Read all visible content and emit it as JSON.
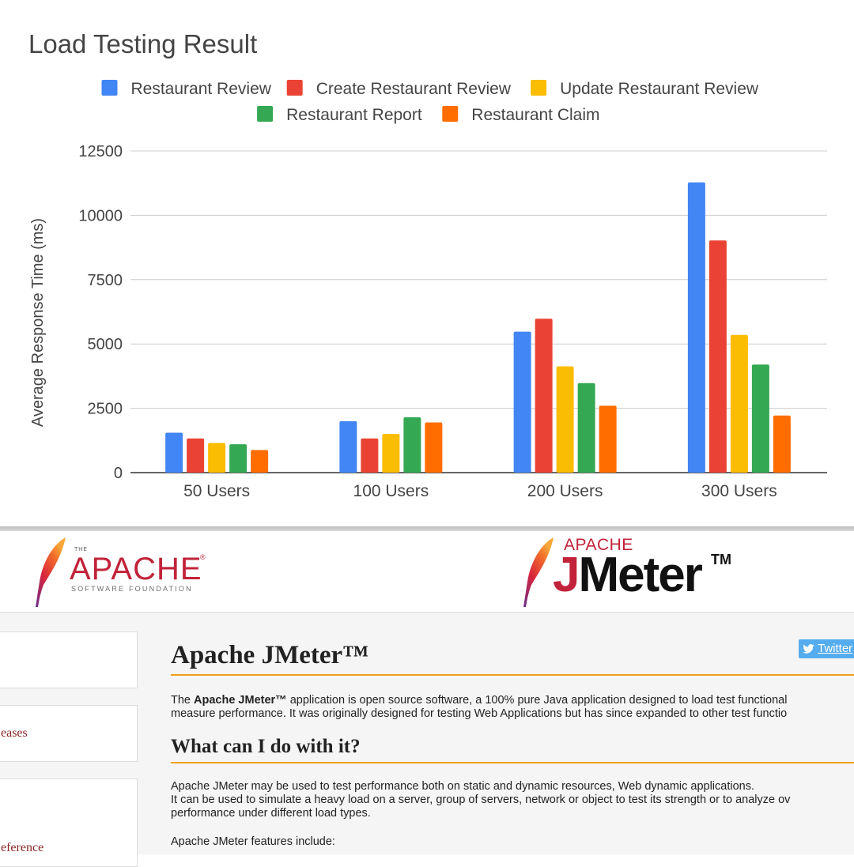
{
  "chart_data": {
    "type": "bar",
    "title": "Load Testing Result",
    "ylabel": "Average Response Time (ms)",
    "xlabel": "",
    "categories": [
      "50 Users",
      "100 Users",
      "200 Users",
      "300 Users"
    ],
    "ylim": [
      0,
      12500
    ],
    "yticks": [
      "0",
      "2500",
      "5000",
      "7500",
      "10000",
      "12500"
    ],
    "grid": true,
    "legend_position": "top",
    "series": [
      {
        "name": "Restaurant Review",
        "color": "#4285f4",
        "values": [
          1550,
          2000,
          5480,
          11280
        ]
      },
      {
        "name": "Create Restaurant Review",
        "color": "#ea4335",
        "values": [
          1330,
          1330,
          5980,
          9020
        ]
      },
      {
        "name": "Update Restaurant Review",
        "color": "#fbbc04",
        "values": [
          1150,
          1500,
          4130,
          5350
        ]
      },
      {
        "name": "Restaurant Report",
        "color": "#34a853",
        "values": [
          1100,
          2150,
          3480,
          4200
        ]
      },
      {
        "name": "Restaurant Claim",
        "color": "#ff6d01",
        "values": [
          880,
          1950,
          2600,
          2220
        ]
      }
    ]
  },
  "banner": {
    "asf": {
      "the": "THE",
      "word": "APACHE",
      "reg": "®",
      "sub": "SOFTWARE FOUNDATION"
    },
    "jmeter": {
      "apache": "APACHE",
      "j": "J",
      "meter": "Meter",
      "tm": "TM"
    }
  },
  "sidebar": {
    "link_releases": "eases",
    "link_reference": "eference"
  },
  "main": {
    "title": "Apache JMeter™",
    "twitter_label": "Twitter",
    "intro_prefix": "The ",
    "intro_bold": "Apache JMeter™",
    "intro_line1_rest": " application is open source software, a 100% pure Java application designed to load test functional",
    "intro_line2": "measure performance. It was originally designed for testing Web Applications but has since expanded to other test functio",
    "h2": "What can I do with it?",
    "p1": "Apache JMeter may be used to test performance both on static and dynamic resources, Web dynamic applications.",
    "p2": "It can be used to simulate a heavy load on a server, group of servers, network or object to test its strength or to analyze ov",
    "p3": "performance under different load types.",
    "p4": "Apache JMeter features include:"
  }
}
